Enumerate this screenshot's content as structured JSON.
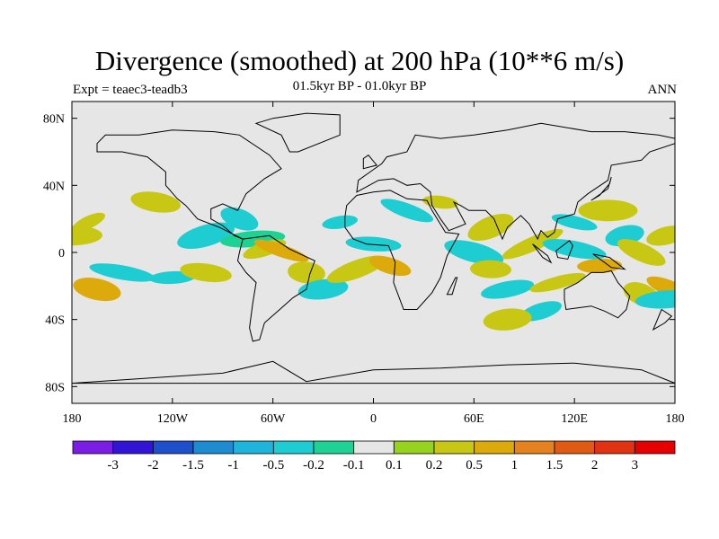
{
  "title": "Divergence (smoothed) at 200 hPa (10**6 m/s)",
  "subtitle": "01.5kyr BP - 01.0kyr BP",
  "left_label": "Expt = teaec3-teadb3",
  "right_label": "ANN",
  "colors": {
    "ocean": "#e6e6e6",
    "coast": "#000000",
    "bins": [
      "#7a1ee6",
      "#3214d7",
      "#1e50cd",
      "#1e8cd2",
      "#1eb4dc",
      "#1ecdd2",
      "#1ed296",
      "#e6e6e6",
      "#96d21e",
      "#c8c814",
      "#dcaa0a",
      "#e6821e",
      "#e15a14",
      "#e13214",
      "#e60000"
    ]
  },
  "chart_data": {
    "type": "filled-contour-map",
    "variable": "Divergence (smoothed) at 200 hPa",
    "units": "10**6 m/s",
    "period": "01.5kyr BP - 01.0kyr BP",
    "season": "ANN",
    "projection": "cylindrical equidistant",
    "xlim": [
      -180,
      180
    ],
    "ylim": [
      -90,
      90
    ],
    "x_ticks": [
      {
        "value": -180,
        "label": "180"
      },
      {
        "value": -120,
        "label": "120W"
      },
      {
        "value": -60,
        "label": "60W"
      },
      {
        "value": 0,
        "label": "0"
      },
      {
        "value": 60,
        "label": "60E"
      },
      {
        "value": 120,
        "label": "120E"
      },
      {
        "value": 180,
        "label": "180"
      }
    ],
    "y_ticks": [
      {
        "value": 80,
        "label": "80N"
      },
      {
        "value": 40,
        "label": "40N"
      },
      {
        "value": 0,
        "label": "0"
      },
      {
        "value": -40,
        "label": "40S"
      },
      {
        "value": -80,
        "label": "80S"
      }
    ],
    "levels": [
      "-3",
      "-2",
      "-1.5",
      "-1",
      "-0.5",
      "-0.2",
      "-0.1",
      "0.1",
      "0.2",
      "0.5",
      "1",
      "1.5",
      "2",
      "3"
    ],
    "anomaly_regions": [
      {
        "lon": -170,
        "lat": 18,
        "bin": 9
      },
      {
        "lon": -165,
        "lat": -22,
        "bin": 10
      },
      {
        "lon": -180,
        "lat": 10,
        "bin": 9
      },
      {
        "lon": 175,
        "lat": 10,
        "bin": 9
      },
      {
        "lon": 178,
        "lat": -22,
        "bin": 10
      },
      {
        "lon": -150,
        "lat": -12,
        "bin": 5
      },
      {
        "lon": -120,
        "lat": -15,
        "bin": 5
      },
      {
        "lon": -100,
        "lat": 10,
        "bin": 5
      },
      {
        "lon": -80,
        "lat": 20,
        "bin": 5
      },
      {
        "lon": -100,
        "lat": -12,
        "bin": 9
      },
      {
        "lon": -72,
        "lat": 8,
        "bin": 6
      },
      {
        "lon": -65,
        "lat": 2,
        "bin": 9
      },
      {
        "lon": -55,
        "lat": 1,
        "bin": 10
      },
      {
        "lon": -40,
        "lat": -12,
        "bin": 9
      },
      {
        "lon": -30,
        "lat": -22,
        "bin": 5
      },
      {
        "lon": -10,
        "lat": -10,
        "bin": 9
      },
      {
        "lon": 10,
        "lat": -8,
        "bin": 10
      },
      {
        "lon": 0,
        "lat": 5,
        "bin": 5
      },
      {
        "lon": -20,
        "lat": 18,
        "bin": 5
      },
      {
        "lon": 70,
        "lat": 15,
        "bin": 9
      },
      {
        "lon": 60,
        "lat": 0,
        "bin": 5
      },
      {
        "lon": 70,
        "lat": -10,
        "bin": 9
      },
      {
        "lon": 80,
        "lat": -22,
        "bin": 5
      },
      {
        "lon": 95,
        "lat": 5,
        "bin": 9
      },
      {
        "lon": 120,
        "lat": 18,
        "bin": 5
      },
      {
        "lon": 140,
        "lat": 25,
        "bin": 9
      },
      {
        "lon": 150,
        "lat": 10,
        "bin": 5
      },
      {
        "lon": 160,
        "lat": 0,
        "bin": 9
      },
      {
        "lon": 120,
        "lat": 2,
        "bin": 5
      },
      {
        "lon": 135,
        "lat": -8,
        "bin": 10
      },
      {
        "lon": 110,
        "lat": -18,
        "bin": 9
      },
      {
        "lon": 160,
        "lat": -25,
        "bin": 9
      },
      {
        "lon": -130,
        "lat": 30,
        "bin": 9
      },
      {
        "lon": 175,
        "lat": -28,
        "bin": 5
      },
      {
        "lon": 100,
        "lat": -35,
        "bin": 5
      },
      {
        "lon": 20,
        "lat": 25,
        "bin": 5
      },
      {
        "lon": 40,
        "lat": 30,
        "bin": 9
      },
      {
        "lon": 80,
        "lat": -40,
        "bin": 9
      }
    ]
  }
}
